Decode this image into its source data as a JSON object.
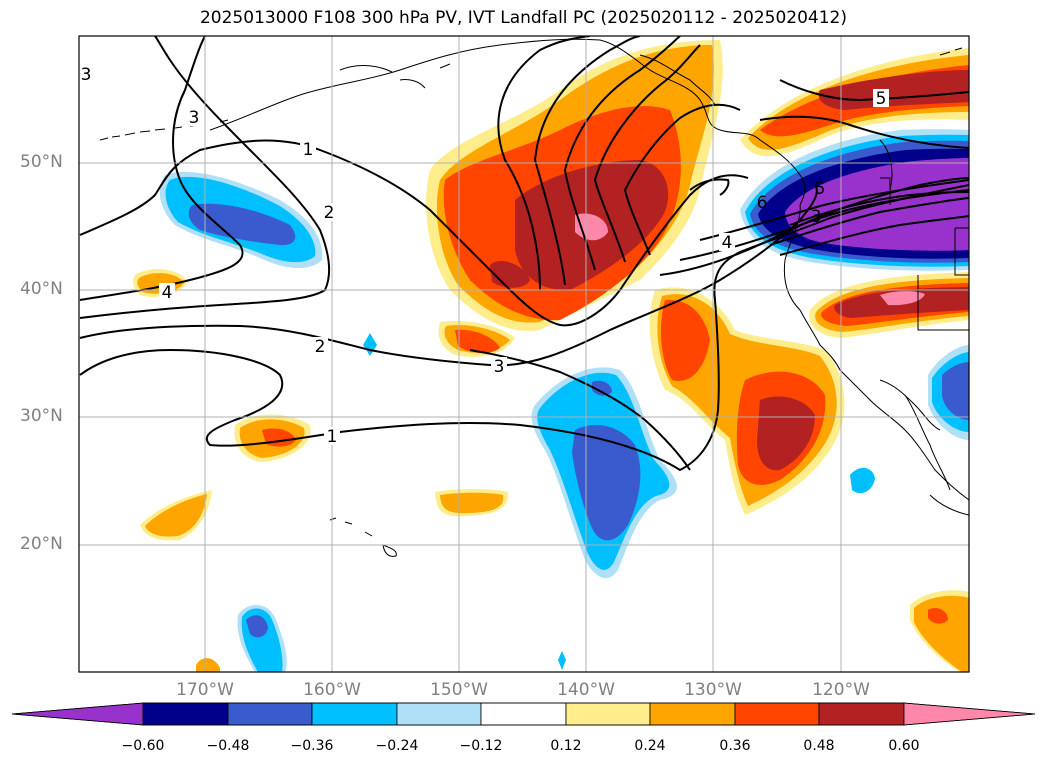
{
  "title": "2025013000 F108 300 hPa PV, IVT Landfall PC (2025020112 - 2025020412)",
  "axes": {
    "lat_labels": [
      "50°N",
      "40°N",
      "30°N",
      "20°N"
    ],
    "lon_labels": [
      "170°W",
      "160°W",
      "150°W",
      "140°W",
      "130°W",
      "120°W"
    ]
  },
  "contour_labels": [
    "3",
    "1",
    "2",
    "4",
    "2",
    "1",
    "3",
    "4",
    "6",
    "5",
    "3",
    "5",
    "3"
  ],
  "colorbar": {
    "ticks": [
      "−0.60",
      "−0.48",
      "−0.36",
      "−0.24",
      "−0.12",
      "0.12",
      "0.24",
      "0.36",
      "0.48",
      "0.60"
    ],
    "colors": [
      "#9932cc",
      "#00008b",
      "#3a5bcd",
      "#00bfff",
      "#b0e0f8",
      "#ffffff",
      "#ffec8b",
      "#ffa500",
      "#ff4500",
      "#b22222",
      "#ff88aa"
    ]
  }
}
